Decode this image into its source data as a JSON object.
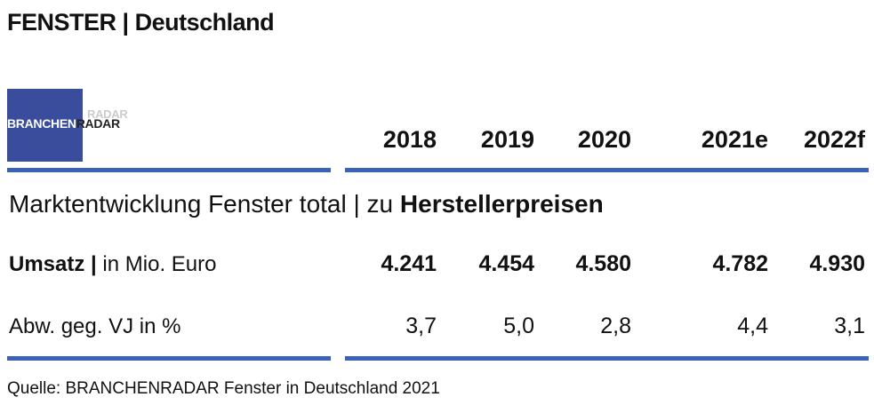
{
  "title": "FENSTER | Deutschland",
  "logo": {
    "part1": "BRANCHEN",
    "part2": "RADAR",
    "shadow": "RADAR"
  },
  "section_title": {
    "normal": "Marktentwicklung Fenster total | zu ",
    "bold": "Herstellerpreisen"
  },
  "source": "Quelle: BRANCHENRADAR Fenster in Deutschland 2021",
  "colors": {
    "accent_blue": "#3a62b8",
    "logo_blue": "#3a4c9c"
  },
  "chart_data": {
    "type": "table",
    "columns": [
      "2018",
      "2019",
      "2020",
      "2021e",
      "2022f"
    ],
    "rows": [
      {
        "label_bold": "Umsatz |",
        "label_normal": " in Mio. Euro",
        "values": [
          "4.241",
          "4.454",
          "4.580",
          "4.782",
          "4.930"
        ]
      },
      {
        "label_bold": "",
        "label_normal": "Abw. geg. VJ in %",
        "values": [
          "3,7",
          "5,0",
          "2,8",
          "4,4",
          "3,1"
        ]
      }
    ]
  }
}
